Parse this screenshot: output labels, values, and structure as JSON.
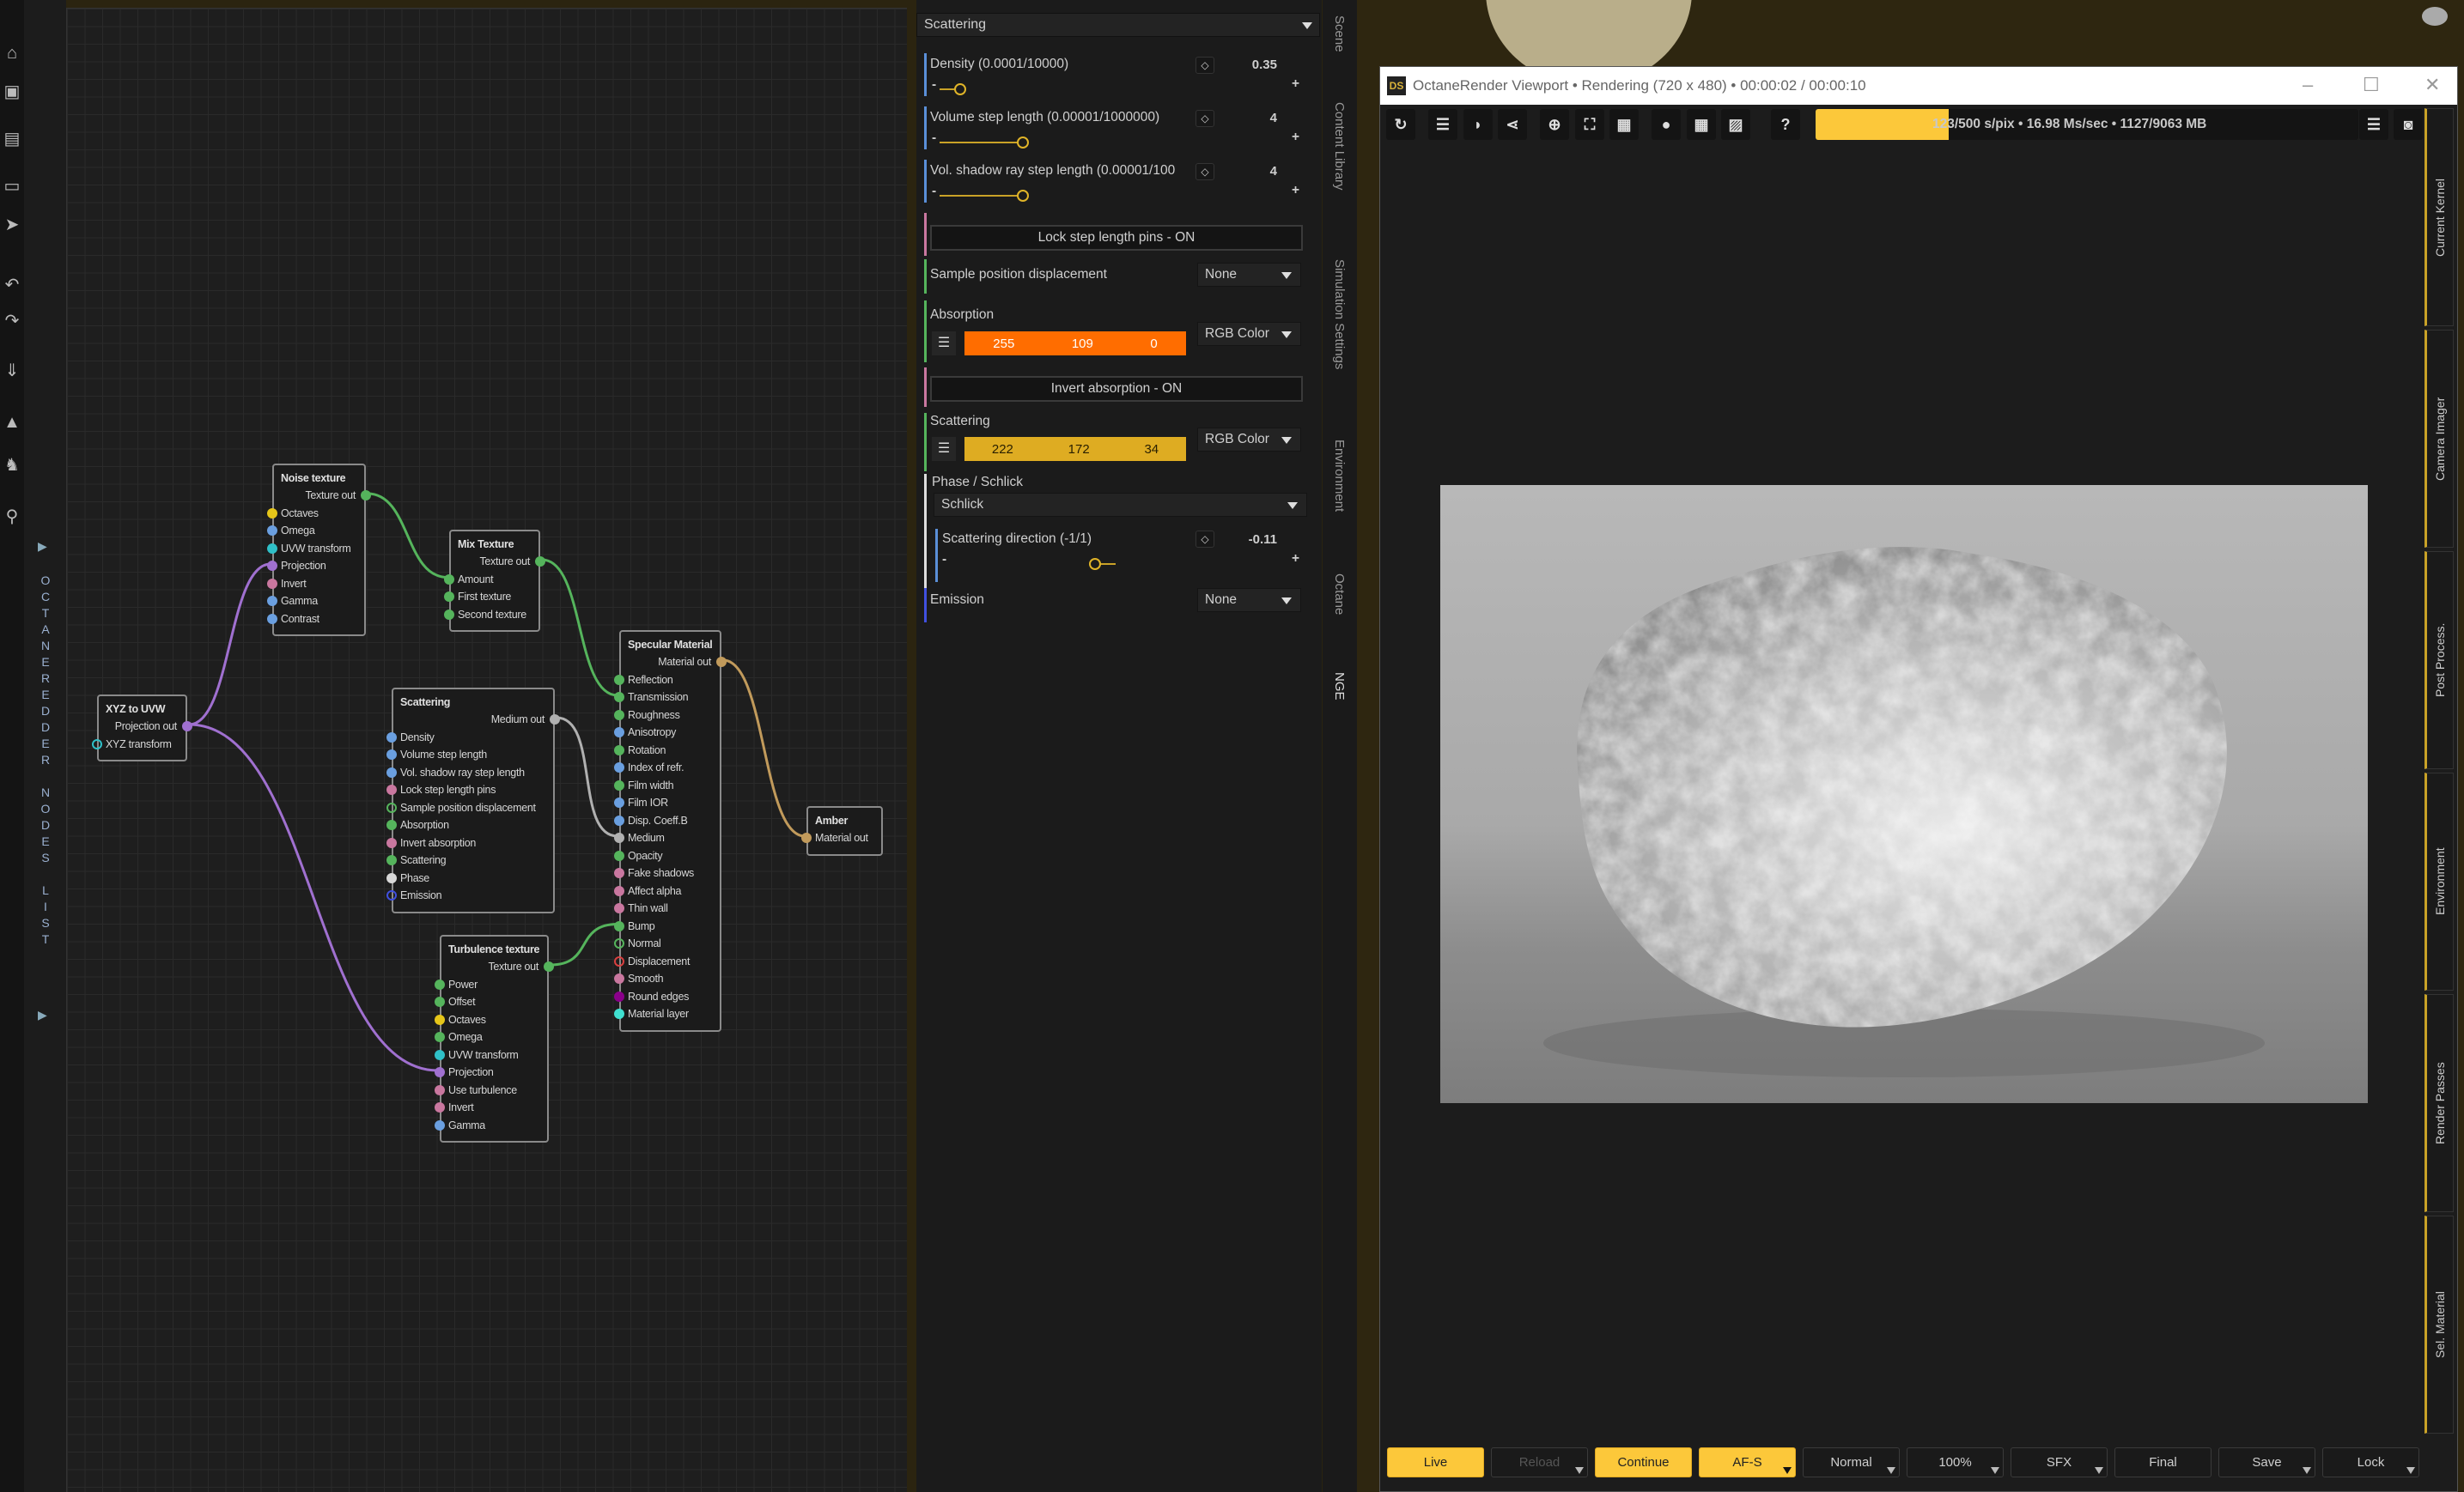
{
  "left_toolbar": {
    "icons": [
      "open-folder-icon",
      "save-icon",
      "disk-icon",
      "new-file-icon",
      "forward-icon",
      "undo-icon",
      "redo-icon",
      "download-s-icon",
      "scene-icon",
      "figure-icon",
      "pose-icon"
    ]
  },
  "node_list_strip": {
    "label": "OCTANEREDDER NODES LIST",
    "arrow_icon": "play-triangle-icon"
  },
  "node_editor": {
    "nodes": [
      {
        "id": "noise",
        "title": "Noise texture",
        "output": {
          "label": "Texture out",
          "color": "#55b45c"
        },
        "inputs": [
          {
            "label": "Octaves",
            "color": "#e6c619"
          },
          {
            "label": "Omega",
            "color": "#6a9fe0"
          },
          {
            "label": "UVW transform",
            "color": "#2fc0c8"
          },
          {
            "label": "Projection",
            "color": "#a070d0"
          },
          {
            "label": "Invert",
            "color": "#c9779f"
          },
          {
            "label": "Gamma",
            "color": "#6a9fe0"
          },
          {
            "label": "Contrast",
            "color": "#6a9fe0"
          }
        ]
      },
      {
        "id": "mix",
        "title": "Mix Texture",
        "output": {
          "label": "Texture out",
          "color": "#55b45c"
        },
        "inputs": [
          {
            "label": "Amount",
            "color": "#55b45c"
          },
          {
            "label": "First texture",
            "color": "#55b45c"
          },
          {
            "label": "Second texture",
            "color": "#55b45c"
          }
        ]
      },
      {
        "id": "xyz",
        "title": "XYZ to UVW",
        "output": {
          "label": "Projection out",
          "color": "#a070d0"
        },
        "inputs": [
          {
            "label": "XYZ transform",
            "color": "#2fc0c8",
            "open": true
          }
        ]
      },
      {
        "id": "scattering",
        "title": "Scattering",
        "output": {
          "label": "Medium out",
          "color": "#b0b0b0"
        },
        "inputs": [
          {
            "label": "Density",
            "color": "#6a9fe0"
          },
          {
            "label": "Volume step length",
            "color": "#6a9fe0"
          },
          {
            "label": "Vol. shadow ray step length",
            "color": "#6a9fe0"
          },
          {
            "label": "Lock step length pins",
            "color": "#c9779f"
          },
          {
            "label": "Sample position displacement",
            "color": "#55b45c",
            "open": true
          },
          {
            "label": "Absorption",
            "color": "#55b45c"
          },
          {
            "label": "Invert absorption",
            "color": "#c9779f"
          },
          {
            "label": "Scattering",
            "color": "#55b45c"
          },
          {
            "label": "Phase",
            "color": "#d8d8d8"
          },
          {
            "label": "Emission",
            "color": "#4050e0",
            "open": true
          }
        ]
      },
      {
        "id": "specular",
        "title": "Specular Material",
        "output": {
          "label": "Material out",
          "color": "#c19a5b"
        },
        "inputs": [
          {
            "label": "Reflection",
            "color": "#55b45c"
          },
          {
            "label": "Transmission",
            "color": "#55b45c"
          },
          {
            "label": "Roughness",
            "color": "#55b45c"
          },
          {
            "label": "Anisotropy",
            "color": "#6a9fe0"
          },
          {
            "label": "Rotation",
            "color": "#55b45c"
          },
          {
            "label": "Index of refr.",
            "color": "#6a9fe0"
          },
          {
            "label": "Film width",
            "color": "#55b45c"
          },
          {
            "label": "Film IOR",
            "color": "#6a9fe0"
          },
          {
            "label": "Disp. Coeff.B",
            "color": "#6a9fe0"
          },
          {
            "label": "Medium",
            "color": "#b0b0b0"
          },
          {
            "label": "Opacity",
            "color": "#55b45c"
          },
          {
            "label": "Fake shadows",
            "color": "#c9779f"
          },
          {
            "label": "Affect alpha",
            "color": "#c9779f"
          },
          {
            "label": "Thin wall",
            "color": "#c9779f"
          },
          {
            "label": "Bump",
            "color": "#55b45c"
          },
          {
            "label": "Normal",
            "color": "#55b45c",
            "open": true
          },
          {
            "label": "Displacement",
            "color": "#d94040",
            "open": true
          },
          {
            "label": "Smooth",
            "color": "#c9779f"
          },
          {
            "label": "Round edges",
            "color": "#8a008a"
          },
          {
            "label": "Material layer",
            "color": "#40e0d0"
          }
        ]
      },
      {
        "id": "turbulence",
        "title": "Turbulence texture",
        "output": {
          "label": "Texture out",
          "color": "#55b45c"
        },
        "inputs": [
          {
            "label": "Power",
            "color": "#55b45c"
          },
          {
            "label": "Offset",
            "color": "#55b45c"
          },
          {
            "label": "Octaves",
            "color": "#e6c619"
          },
          {
            "label": "Omega",
            "color": "#55b45c"
          },
          {
            "label": "UVW transform",
            "color": "#2fc0c8"
          },
          {
            "label": "Projection",
            "color": "#a070d0"
          },
          {
            "label": "Use turbulence",
            "color": "#c9779f"
          },
          {
            "label": "Invert",
            "color": "#c9779f"
          },
          {
            "label": "Gamma",
            "color": "#6a9fe0"
          }
        ]
      },
      {
        "id": "amber",
        "title": "Amber",
        "inputs": [
          {
            "label": "Material out",
            "color": "#c19a5b"
          }
        ]
      }
    ],
    "links": [
      {
        "from": "noise",
        "to": "mix",
        "port": 0
      },
      {
        "from": "mix",
        "to": "specular",
        "port": 1
      },
      {
        "from": "xyz",
        "to": "noise",
        "port": 3
      },
      {
        "from": "xyz",
        "to": "turbulence",
        "port": 5
      },
      {
        "from": "scattering",
        "to": "specular",
        "port": 9
      },
      {
        "from": "turbulence",
        "to": "specular",
        "port": 14
      },
      {
        "from": "specular",
        "to": "amber",
        "port": 0
      }
    ]
  },
  "properties": {
    "header": "Scattering",
    "density": {
      "label": "Density (0.0001/10000)",
      "value": "0.35",
      "slider_fraction": 0.06
    },
    "volume_step": {
      "label": "Volume step length (0.00001/1000000)",
      "value": "4",
      "slider_fraction": 0.24
    },
    "shadow_step": {
      "label": "Vol. shadow ray step length (0.00001/100",
      "value": "4",
      "slider_fraction": 0.24
    },
    "lock_button": "Lock step length pins - ON",
    "sample_displacement": {
      "label": "Sample position displacement",
      "value": "None"
    },
    "absorption": {
      "label": "Absorption",
      "r": "255",
      "g": "109",
      "b": "0",
      "color": "#ff6d00",
      "mode": "RGB Color"
    },
    "invert_button": "Invert absorption - ON",
    "scattering": {
      "label": "Scattering",
      "r": "222",
      "g": "172",
      "b": "34",
      "color": "#deac22",
      "mode": "RGB Color"
    },
    "phase": {
      "label": "Phase / Schlick",
      "value": "Schlick"
    },
    "direction": {
      "label": "Scattering direction (-1/1)",
      "value": "-0.11",
      "slider_fraction": 0.445
    },
    "emission": {
      "label": "Emission",
      "value": "None"
    }
  },
  "side_tabs": [
    "Scene",
    "Content Library",
    "Simulation Settings",
    "Environment",
    "Octane",
    "NGE"
  ],
  "viewport": {
    "title": "OctaneRender Viewport • Rendering (720 x 480) • 00:00:02 / 00:00:10",
    "app_icon": "DS",
    "toolbar_icons": [
      "refresh-icon",
      "list-arrow-icon",
      "pick-icon",
      "share-icon",
      "crosshair-icon",
      "focus-frame-icon",
      "grid4-icon",
      "circle-icon",
      "grid9-icon",
      "image-icon",
      "help-icon"
    ],
    "progress_text": "123/500 s/pix • 16.98 Ms/sec • 1127/9063 MB",
    "progress": 0.246,
    "right_tabs": [
      "Current Kernel",
      "Camera Imager",
      "Post Process.",
      "Environment",
      "Render Passes",
      "Sel. Material"
    ],
    "buttons": [
      {
        "label": "Live",
        "style": "active"
      },
      {
        "label": "Reload",
        "style": "disabled",
        "dropdown": true
      },
      {
        "label": "Continue",
        "style": "active"
      },
      {
        "label": "AF-S",
        "style": "active",
        "dropdown": true
      },
      {
        "label": "Normal",
        "dropdown": true
      },
      {
        "label": "100%",
        "dropdown": true
      },
      {
        "label": "SFX",
        "dropdown": true
      },
      {
        "label": "Final"
      },
      {
        "label": "Save",
        "dropdown": true
      },
      {
        "label": "Lock",
        "dropdown": true
      }
    ]
  }
}
